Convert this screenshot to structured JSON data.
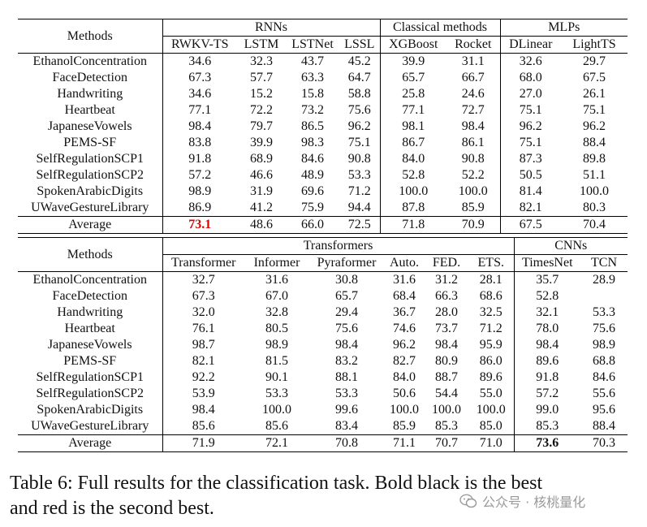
{
  "table1": {
    "methods_header": "Methods",
    "groups": [
      "RNNs",
      "Classical methods",
      "MLPs"
    ],
    "models": [
      "RWKV-TS",
      "LSTM",
      "LSTNet",
      "LSSL",
      "XGBoost",
      "Rocket",
      "DLinear",
      "LightTS"
    ],
    "rows": [
      {
        "dataset": "EthanolConcentration",
        "values": [
          "34.6",
          "32.3",
          "43.7",
          "45.2",
          "39.9",
          "31.1",
          "32.6",
          "29.7"
        ]
      },
      {
        "dataset": "FaceDetection",
        "values": [
          "67.3",
          "57.7",
          "63.3",
          "64.7",
          "65.7",
          "66.7",
          "68.0",
          "67.5"
        ]
      },
      {
        "dataset": "Handwriting",
        "values": [
          "34.6",
          "15.2",
          "15.8",
          "58.8",
          "25.8",
          "24.6",
          "27.0",
          "26.1"
        ]
      },
      {
        "dataset": "Heartbeat",
        "values": [
          "77.1",
          "72.2",
          "73.2",
          "75.6",
          "77.1",
          "72.7",
          "75.1",
          "75.1"
        ]
      },
      {
        "dataset": "JapaneseVowels",
        "values": [
          "98.4",
          "79.7",
          "86.5",
          "96.2",
          "98.1",
          "98.4",
          "96.2",
          "96.2"
        ]
      },
      {
        "dataset": "PEMS-SF",
        "values": [
          "83.8",
          "39.9",
          "98.3",
          "75.1",
          "86.7",
          "86.1",
          "75.1",
          "88.4"
        ]
      },
      {
        "dataset": "SelfRegulationSCP1",
        "values": [
          "91.8",
          "68.9",
          "84.6",
          "90.8",
          "84.0",
          "90.8",
          "87.3",
          "89.8"
        ]
      },
      {
        "dataset": "SelfRegulationSCP2",
        "values": [
          "57.2",
          "46.6",
          "48.9",
          "53.3",
          "52.8",
          "52.2",
          "50.5",
          "51.1"
        ]
      },
      {
        "dataset": "SpokenArabicDigits",
        "values": [
          "98.9",
          "31.9",
          "69.6",
          "71.2",
          "100.0",
          "100.0",
          "81.4",
          "100.0"
        ]
      },
      {
        "dataset": "UWaveGestureLibrary",
        "values": [
          "86.9",
          "41.2",
          "75.9",
          "94.4",
          "87.8",
          "85.9",
          "82.1",
          "80.3"
        ]
      }
    ],
    "average_label": "Average",
    "average": [
      "73.1",
      "48.6",
      "66.0",
      "72.5",
      "71.8",
      "70.9",
      "67.5",
      "70.4"
    ]
  },
  "table2": {
    "methods_header": "Methods",
    "groups": [
      "Transformers",
      "CNNs"
    ],
    "models": [
      "Transformer",
      "Informer",
      "Pyraformer",
      "Auto.",
      "FED.",
      "ETS.",
      "TimesNet",
      "TCN"
    ],
    "rows": [
      {
        "dataset": "EthanolConcentration",
        "values": [
          "32.7",
          "31.6",
          "30.8",
          "31.6",
          "31.2",
          "28.1",
          "35.7",
          "28.9"
        ]
      },
      {
        "dataset": "FaceDetection",
        "values": [
          "67.3",
          "67.0",
          "65.7",
          "68.4",
          "66.3",
          "68.6",
          "52.8",
          ""
        ]
      },
      {
        "dataset": "Handwriting",
        "values": [
          "32.0",
          "32.8",
          "29.4",
          "36.7",
          "28.0",
          "32.5",
          "32.1",
          "53.3"
        ]
      },
      {
        "dataset": "Heartbeat",
        "values": [
          "76.1",
          "80.5",
          "75.6",
          "74.6",
          "73.7",
          "71.2",
          "78.0",
          "75.6"
        ]
      },
      {
        "dataset": "JapaneseVowels",
        "values": [
          "98.7",
          "98.9",
          "98.4",
          "96.2",
          "98.4",
          "95.9",
          "98.4",
          "98.9"
        ]
      },
      {
        "dataset": "PEMS-SF",
        "values": [
          "82.1",
          "81.5",
          "83.2",
          "82.7",
          "80.9",
          "86.0",
          "89.6",
          "68.8"
        ]
      },
      {
        "dataset": "SelfRegulationSCP1",
        "values": [
          "92.2",
          "90.1",
          "88.1",
          "84.0",
          "88.7",
          "89.6",
          "91.8",
          "84.6"
        ]
      },
      {
        "dataset": "SelfRegulationSCP2",
        "values": [
          "53.9",
          "53.3",
          "53.3",
          "50.6",
          "54.4",
          "55.0",
          "57.2",
          "55.6"
        ]
      },
      {
        "dataset": "SpokenArabicDigits",
        "values": [
          "98.4",
          "100.0",
          "99.6",
          "100.0",
          "100.0",
          "100.0",
          "99.0",
          "95.6"
        ]
      },
      {
        "dataset": "UWaveGestureLibrary",
        "values": [
          "85.6",
          "85.6",
          "83.4",
          "85.9",
          "85.3",
          "85.0",
          "85.3",
          "88.4"
        ]
      }
    ],
    "average_label": "Average",
    "average": [
      "71.9",
      "72.1",
      "70.8",
      "71.1",
      "70.7",
      "71.0",
      "73.6",
      "70.3"
    ]
  },
  "highlights": {
    "best_color": "#000000",
    "second_color": "#e00000"
  },
  "caption": {
    "line1": "Table 6: Full results for the classification task. Bold black is the best",
    "line2": "and red is the second best."
  },
  "watermark": {
    "text": "公众号 · 核桃量化",
    "icon": "wechat-logo-icon"
  }
}
